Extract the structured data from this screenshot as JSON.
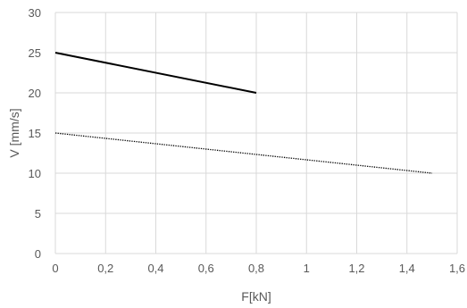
{
  "chart_data": {
    "type": "line",
    "title": "",
    "xlabel": "F[kN]",
    "ylabel": "V [mm/s]",
    "xlim": [
      0,
      1.6
    ],
    "ylim": [
      0,
      30
    ],
    "x_ticks": [
      "0",
      "0,2",
      "0,4",
      "0,6",
      "0,8",
      "1",
      "1,2",
      "1,4",
      "1,6"
    ],
    "x_tick_values": [
      0,
      0.2,
      0.4,
      0.6,
      0.8,
      1.0,
      1.2,
      1.4,
      1.6
    ],
    "y_ticks": [
      "0",
      "5",
      "10",
      "15",
      "20",
      "25",
      "30"
    ],
    "y_tick_values": [
      0,
      5,
      10,
      15,
      20,
      25,
      30
    ],
    "grid": true,
    "legend": "none",
    "series": [
      {
        "style": "solid",
        "color": "#000000",
        "x": [
          0,
          0.8
        ],
        "y": [
          25,
          20
        ]
      },
      {
        "style": "dotted",
        "color": "#000000",
        "x": [
          0,
          1.5
        ],
        "y": [
          15,
          10
        ]
      }
    ]
  }
}
